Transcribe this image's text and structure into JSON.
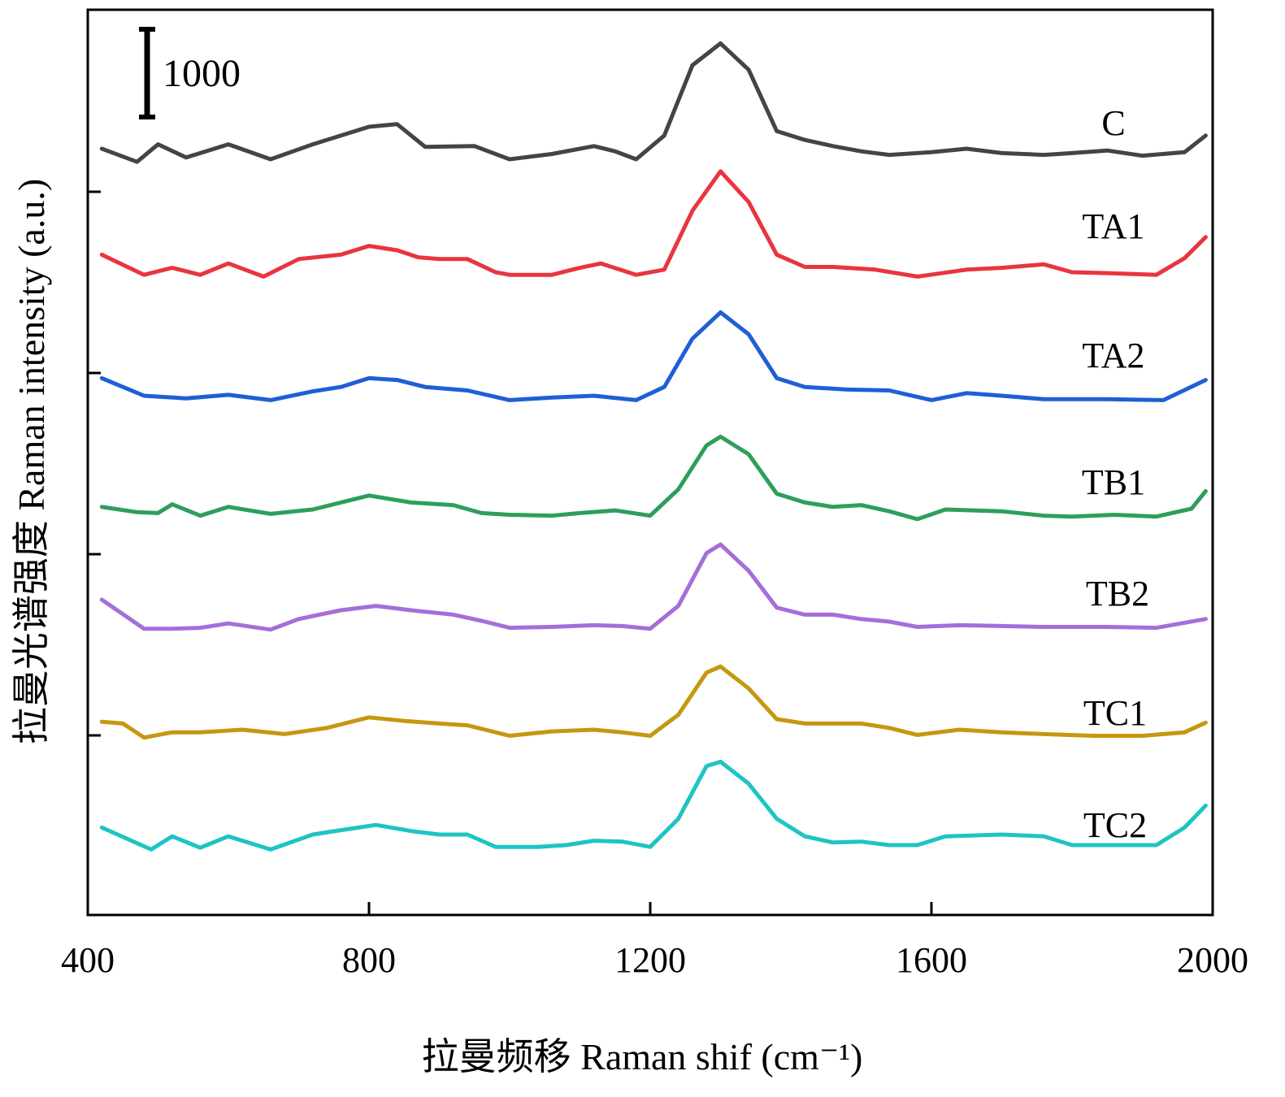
{
  "chart_data": {
    "type": "line",
    "xlabel": "拉曼频移 Raman shif (cm⁻¹)",
    "ylabel": "拉曼光谱强度 Raman intensity (a.u.)",
    "xlim": [
      400,
      2000
    ],
    "x_ticks": [
      "400",
      "800",
      "1200",
      "1600",
      "2000"
    ],
    "scale_bar_label": "1000",
    "grid": false,
    "legend": "inline labels right of each curve",
    "series": [
      {
        "name": "C",
        "color": "#444444",
        "points": [
          [
            420,
            0
          ],
          [
            470,
            -150
          ],
          [
            500,
            50
          ],
          [
            540,
            -100
          ],
          [
            600,
            50
          ],
          [
            660,
            -120
          ],
          [
            720,
            50
          ],
          [
            800,
            250
          ],
          [
            840,
            280
          ],
          [
            880,
            20
          ],
          [
            950,
            30
          ],
          [
            1000,
            -120
          ],
          [
            1060,
            -60
          ],
          [
            1120,
            30
          ],
          [
            1150,
            -30
          ],
          [
            1180,
            -120
          ],
          [
            1220,
            150
          ],
          [
            1260,
            950
          ],
          [
            1300,
            1200
          ],
          [
            1340,
            900
          ],
          [
            1380,
            200
          ],
          [
            1420,
            100
          ],
          [
            1460,
            30
          ],
          [
            1500,
            -30
          ],
          [
            1540,
            -70
          ],
          [
            1600,
            -40
          ],
          [
            1650,
            0
          ],
          [
            1700,
            -50
          ],
          [
            1760,
            -70
          ],
          [
            1800,
            -50
          ],
          [
            1850,
            -20
          ],
          [
            1900,
            -80
          ],
          [
            1960,
            -40
          ],
          [
            1990,
            150
          ]
        ]
      },
      {
        "name": "TA1",
        "color": "#e8353e",
        "points": [
          [
            420,
            200
          ],
          [
            480,
            -30
          ],
          [
            520,
            50
          ],
          [
            560,
            -30
          ],
          [
            600,
            100
          ],
          [
            650,
            -50
          ],
          [
            700,
            150
          ],
          [
            760,
            200
          ],
          [
            800,
            300
          ],
          [
            840,
            250
          ],
          [
            870,
            170
          ],
          [
            900,
            150
          ],
          [
            940,
            150
          ],
          [
            980,
            0
          ],
          [
            1000,
            -30
          ],
          [
            1060,
            -30
          ],
          [
            1100,
            50
          ],
          [
            1130,
            100
          ],
          [
            1180,
            -30
          ],
          [
            1220,
            30
          ],
          [
            1260,
            700
          ],
          [
            1300,
            1150
          ],
          [
            1340,
            800
          ],
          [
            1380,
            200
          ],
          [
            1420,
            60
          ],
          [
            1460,
            60
          ],
          [
            1520,
            30
          ],
          [
            1580,
            -50
          ],
          [
            1650,
            30
          ],
          [
            1700,
            50
          ],
          [
            1760,
            90
          ],
          [
            1800,
            0
          ],
          [
            1850,
            -10
          ],
          [
            1920,
            -30
          ],
          [
            1960,
            160
          ],
          [
            1990,
            400
          ]
        ]
      },
      {
        "name": "TA2",
        "color": "#1f5fd6",
        "points": [
          [
            420,
            200
          ],
          [
            480,
            0
          ],
          [
            540,
            -30
          ],
          [
            600,
            10
          ],
          [
            660,
            -50
          ],
          [
            720,
            50
          ],
          [
            760,
            100
          ],
          [
            800,
            200
          ],
          [
            840,
            180
          ],
          [
            880,
            100
          ],
          [
            940,
            60
          ],
          [
            1000,
            -50
          ],
          [
            1060,
            -20
          ],
          [
            1120,
            0
          ],
          [
            1180,
            -50
          ],
          [
            1220,
            100
          ],
          [
            1260,
            650
          ],
          [
            1300,
            950
          ],
          [
            1340,
            700
          ],
          [
            1380,
            200
          ],
          [
            1420,
            100
          ],
          [
            1480,
            70
          ],
          [
            1540,
            60
          ],
          [
            1600,
            -50
          ],
          [
            1650,
            30
          ],
          [
            1700,
            0
          ],
          [
            1760,
            -40
          ],
          [
            1850,
            -40
          ],
          [
            1930,
            -50
          ],
          [
            1990,
            180
          ]
        ]
      },
      {
        "name": "TB1",
        "color": "#2e9e5c",
        "points": [
          [
            420,
            150
          ],
          [
            470,
            90
          ],
          [
            500,
            80
          ],
          [
            520,
            180
          ],
          [
            560,
            50
          ],
          [
            600,
            150
          ],
          [
            660,
            70
          ],
          [
            720,
            120
          ],
          [
            800,
            280
          ],
          [
            860,
            200
          ],
          [
            920,
            170
          ],
          [
            960,
            80
          ],
          [
            1000,
            60
          ],
          [
            1060,
            50
          ],
          [
            1100,
            80
          ],
          [
            1150,
            110
          ],
          [
            1200,
            50
          ],
          [
            1240,
            350
          ],
          [
            1280,
            850
          ],
          [
            1300,
            950
          ],
          [
            1340,
            750
          ],
          [
            1380,
            300
          ],
          [
            1420,
            200
          ],
          [
            1460,
            150
          ],
          [
            1500,
            170
          ],
          [
            1540,
            100
          ],
          [
            1580,
            10
          ],
          [
            1620,
            120
          ],
          [
            1700,
            100
          ],
          [
            1760,
            50
          ],
          [
            1800,
            40
          ],
          [
            1860,
            60
          ],
          [
            1920,
            40
          ],
          [
            1970,
            130
          ],
          [
            1990,
            330
          ]
        ]
      },
      {
        "name": "TB2",
        "color": "#a56ed8",
        "points": [
          [
            420,
            370
          ],
          [
            480,
            40
          ],
          [
            520,
            40
          ],
          [
            560,
            50
          ],
          [
            600,
            100
          ],
          [
            660,
            30
          ],
          [
            700,
            150
          ],
          [
            760,
            250
          ],
          [
            810,
            300
          ],
          [
            860,
            250
          ],
          [
            920,
            200
          ],
          [
            960,
            130
          ],
          [
            1000,
            50
          ],
          [
            1060,
            60
          ],
          [
            1120,
            80
          ],
          [
            1160,
            70
          ],
          [
            1200,
            40
          ],
          [
            1240,
            300
          ],
          [
            1280,
            900
          ],
          [
            1300,
            1000
          ],
          [
            1340,
            700
          ],
          [
            1380,
            280
          ],
          [
            1420,
            200
          ],
          [
            1460,
            200
          ],
          [
            1500,
            150
          ],
          [
            1540,
            120
          ],
          [
            1580,
            60
          ],
          [
            1640,
            80
          ],
          [
            1700,
            70
          ],
          [
            1760,
            60
          ],
          [
            1850,
            60
          ],
          [
            1920,
            50
          ],
          [
            1990,
            150
          ]
        ]
      },
      {
        "name": "TC1",
        "color": "#c4980f",
        "points": [
          [
            420,
            220
          ],
          [
            450,
            200
          ],
          [
            480,
            40
          ],
          [
            520,
            100
          ],
          [
            560,
            100
          ],
          [
            620,
            130
          ],
          [
            680,
            80
          ],
          [
            740,
            150
          ],
          [
            800,
            270
          ],
          [
            850,
            230
          ],
          [
            900,
            200
          ],
          [
            940,
            180
          ],
          [
            1000,
            60
          ],
          [
            1060,
            110
          ],
          [
            1120,
            130
          ],
          [
            1160,
            100
          ],
          [
            1200,
            60
          ],
          [
            1240,
            300
          ],
          [
            1280,
            780
          ],
          [
            1300,
            850
          ],
          [
            1340,
            600
          ],
          [
            1380,
            250
          ],
          [
            1420,
            200
          ],
          [
            1500,
            200
          ],
          [
            1540,
            150
          ],
          [
            1580,
            70
          ],
          [
            1640,
            130
          ],
          [
            1700,
            100
          ],
          [
            1760,
            80
          ],
          [
            1830,
            60
          ],
          [
            1900,
            60
          ],
          [
            1960,
            100
          ],
          [
            1990,
            210
          ]
        ]
      },
      {
        "name": "TC2",
        "color": "#1ec4c4",
        "points": [
          [
            420,
            200
          ],
          [
            490,
            -50
          ],
          [
            520,
            100
          ],
          [
            560,
            -30
          ],
          [
            600,
            100
          ],
          [
            660,
            -50
          ],
          [
            720,
            120
          ],
          [
            760,
            170
          ],
          [
            810,
            230
          ],
          [
            860,
            160
          ],
          [
            900,
            120
          ],
          [
            940,
            120
          ],
          [
            980,
            -20
          ],
          [
            1040,
            -20
          ],
          [
            1080,
            0
          ],
          [
            1120,
            50
          ],
          [
            1160,
            40
          ],
          [
            1200,
            -20
          ],
          [
            1240,
            300
          ],
          [
            1280,
            900
          ],
          [
            1300,
            950
          ],
          [
            1340,
            700
          ],
          [
            1380,
            300
          ],
          [
            1420,
            100
          ],
          [
            1460,
            30
          ],
          [
            1500,
            40
          ],
          [
            1540,
            0
          ],
          [
            1580,
            0
          ],
          [
            1620,
            100
          ],
          [
            1700,
            120
          ],
          [
            1760,
            100
          ],
          [
            1800,
            0
          ],
          [
            1860,
            0
          ],
          [
            1920,
            0
          ],
          [
            1960,
            200
          ],
          [
            1990,
            450
          ]
        ]
      }
    ]
  }
}
